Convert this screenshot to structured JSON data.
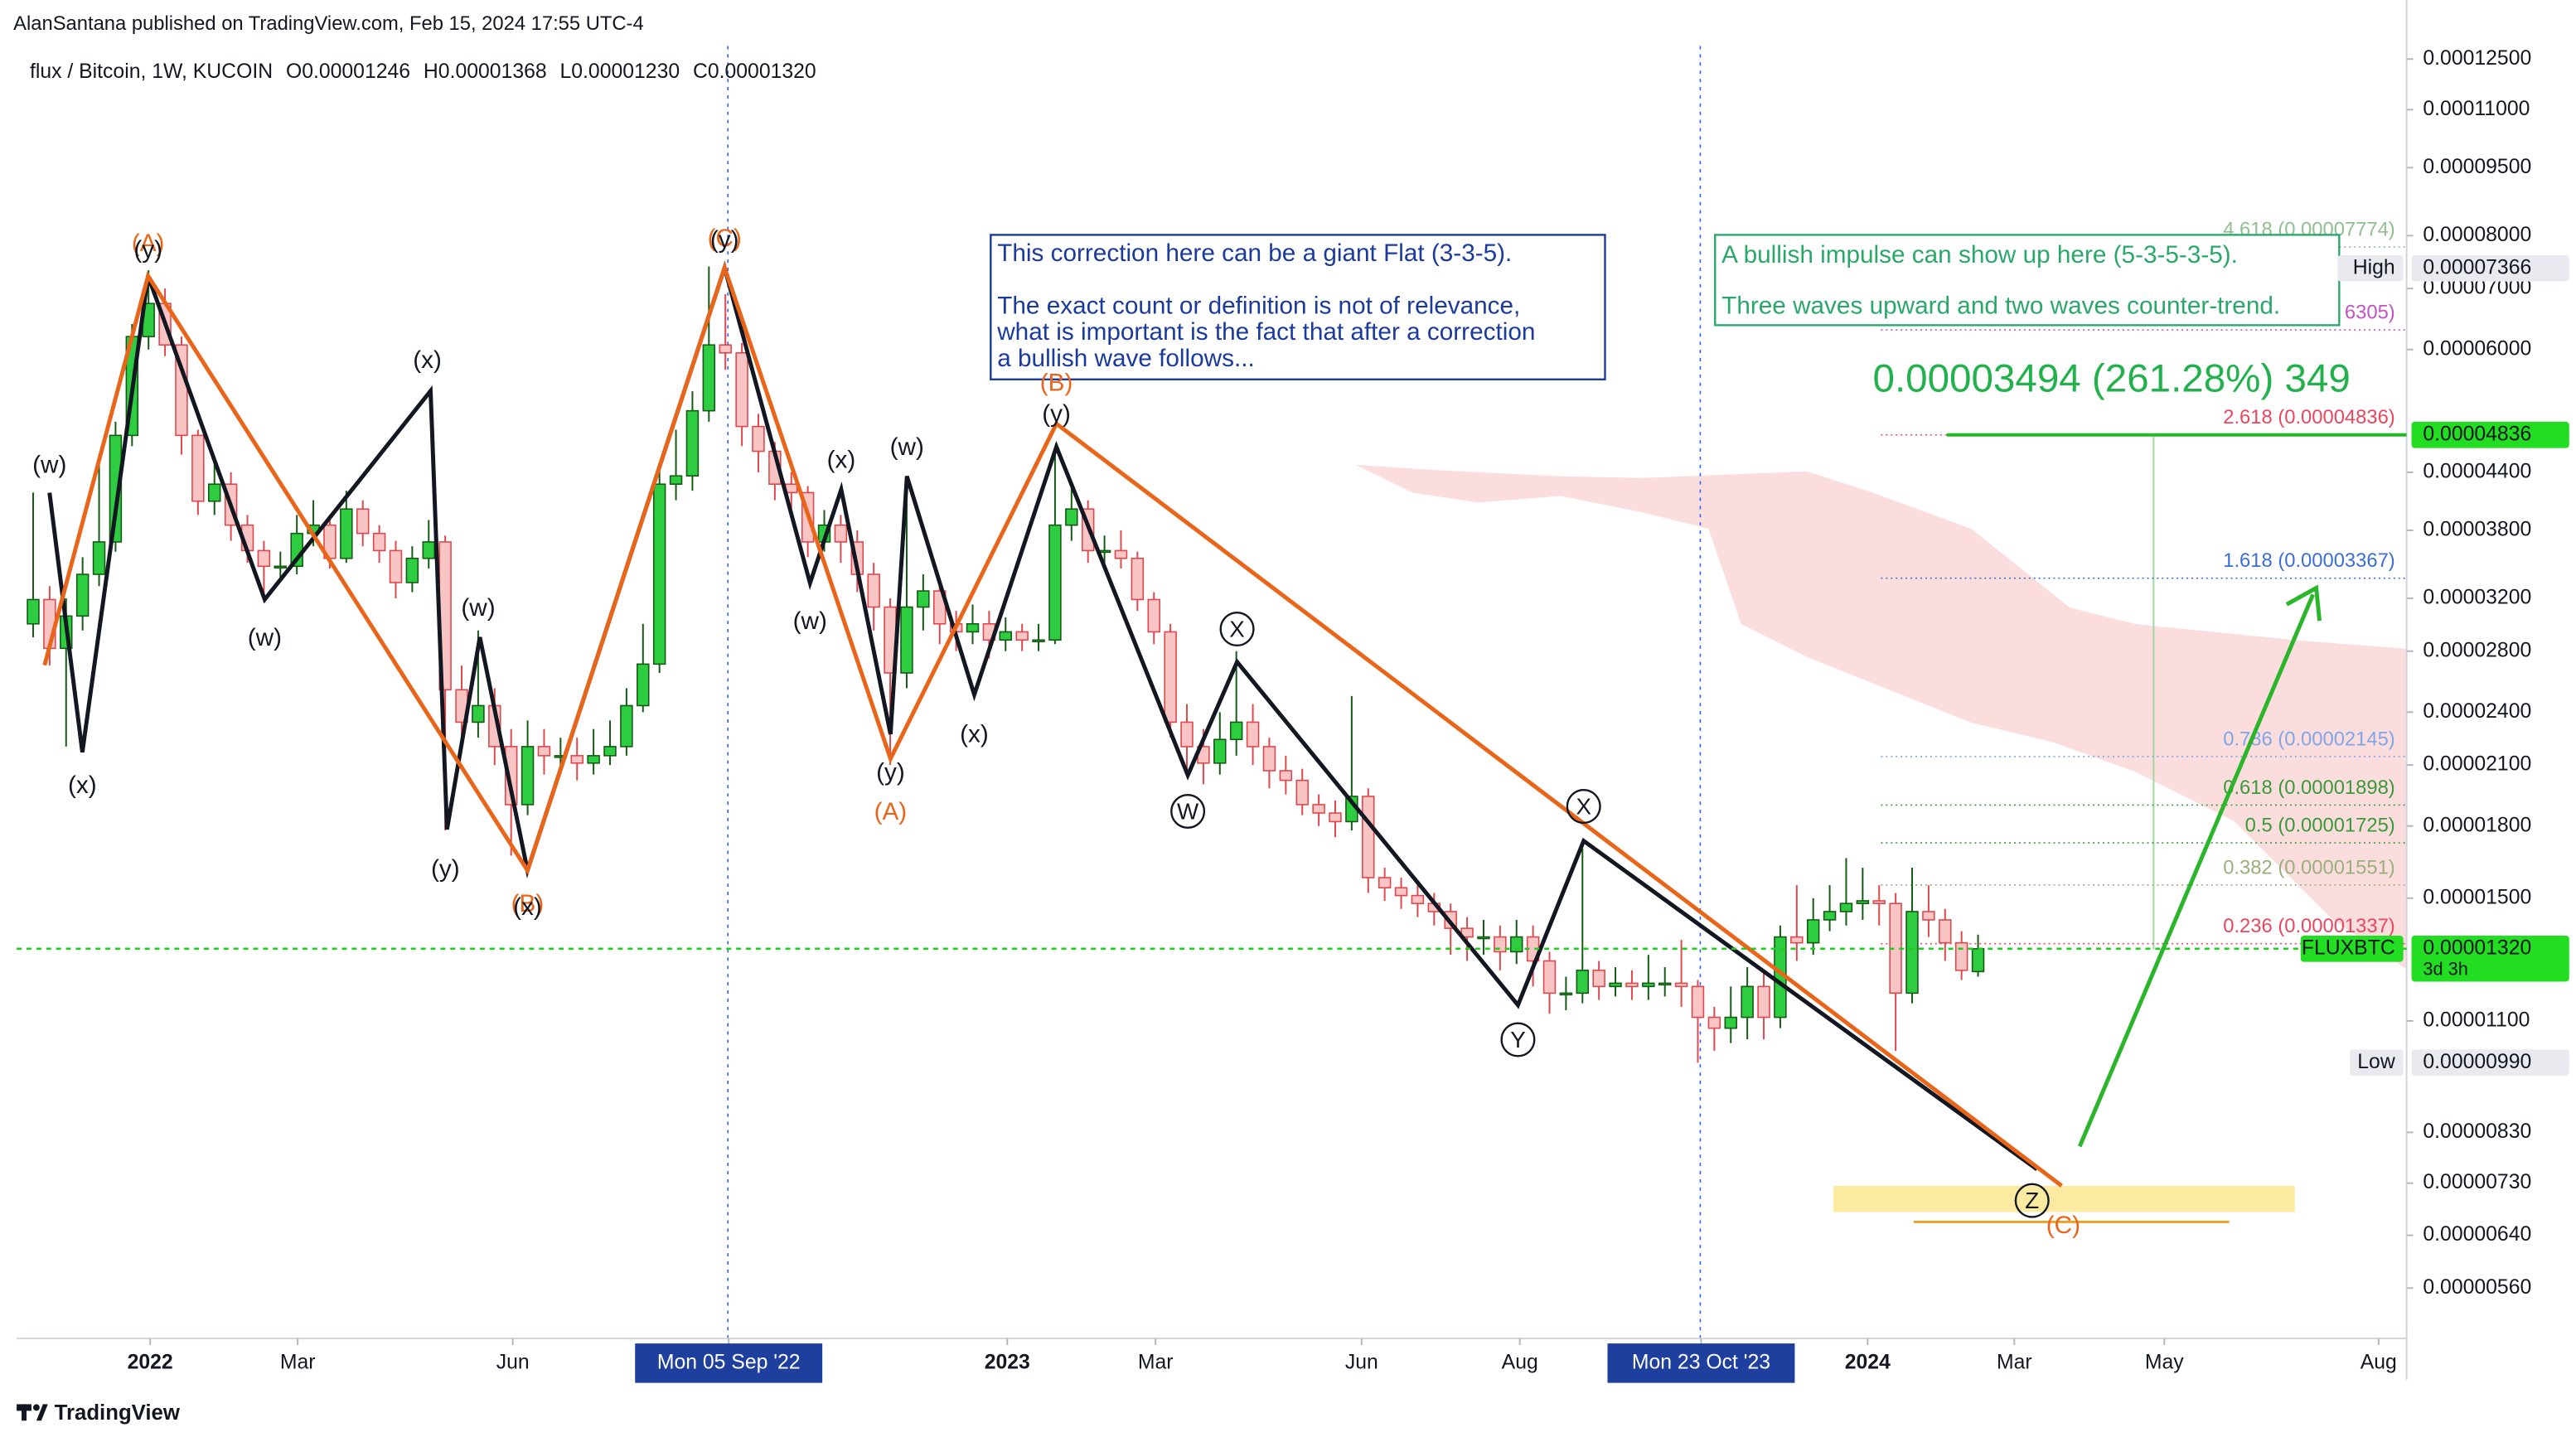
{
  "header": {
    "publisher": "AlanSantana published on TradingView.com, Feb 15, 2024 17:55 UTC-4"
  },
  "legend": {
    "symbol": "flux / Bitcoin, 1W, KUCOIN",
    "open": "O0.00001246",
    "high": "H0.00001368",
    "low": "L0.00001230",
    "close": "C0.00001320"
  },
  "chart_data": {
    "type": "candlestick",
    "log_scale": true,
    "grid": false,
    "up_color": "#2ecc40",
    "down_color": "#f9c4c4",
    "up_border": "#145a14",
    "down_border": "#e0474c",
    "open": [
      3e-05,
      3.19e-05,
      2.82e-05,
      3.06e-05,
      3.4e-05,
      3.69e-05,
      4.83e-05,
      6.2e-05,
      6.74e-05,
      6.07e-05,
      4.83e-05,
      4.09e-05,
      4.27e-05,
      3.85e-05,
      3.61e-05,
      3.47e-05,
      3.47e-05,
      3.77e-05,
      3.85e-05,
      3.54e-05,
      4.01e-05,
      3.77e-05,
      3.61e-05,
      3.33e-05,
      3.54e-05,
      3.69e-05,
      2.54e-05,
      2.34e-05,
      2.44e-05,
      2.2e-05,
      1.9e-05,
      2.2e-05,
      2.15e-05,
      2.15e-05,
      2.11e-05,
      2.15e-05,
      2.2e-05,
      2.44e-05,
      2.71e-05,
      4.27e-05,
      4.36e-05,
      5.14e-05,
      6.07e-05,
      5.95e-05,
      4.94e-05,
      4.64e-05,
      4.27e-05,
      4.18e-05,
      3.69e-05,
      3.85e-05,
      3.69e-05,
      3.4e-05,
      3.13e-05,
      2.65e-05,
      3.13e-05,
      3.26e-05,
      3e-05,
      2.94e-05,
      3e-05,
      2.88e-05,
      2.94e-05,
      2.88e-05,
      2.88e-05,
      3.85e-05,
      4.01e-05,
      3.61e-05,
      3.61e-05,
      3.54e-05,
      3.19e-05,
      2.94e-05,
      2.34e-05,
      2.2e-05,
      2.11e-05,
      2.24e-05,
      2.34e-05,
      2.2e-05,
      2.07e-05,
      2.02e-05,
      1.9e-05,
      1.86e-05,
      1.82e-05,
      1.94e-05,
      1.58e-05,
      1.54e-05,
      1.51e-05,
      1.48e-05,
      1.45e-05,
      1.39e-05,
      1.36e-05,
      1.36e-05,
      1.31e-05,
      1.36e-05,
      1.28e-05,
      1.18e-05,
      1.18e-05,
      1.25e-05,
      1.2e-05,
      1.21e-05,
      1.2e-05,
      1.21e-05,
      1.21e-05,
      1.2e-05,
      1.11e-05,
      1.08e-05,
      1.11e-05,
      1.2e-05,
      1.11e-05,
      1.36e-05,
      1.34e-05,
      1.42e-05,
      1.45e-05,
      1.48e-05,
      1.49e-05,
      1.48e-05,
      1.18e-05,
      1.45e-05,
      1.42e-05,
      1.34e-05,
      1.246e-05
    ],
    "high": [
      4.18e-05,
      3.3e-05,
      3.2e-05,
      3.55e-05,
      4.6e-05,
      5e-05,
      6.4e-05,
      7.33e-05,
      7e-05,
      6.2e-05,
      4.9e-05,
      4.5e-05,
      4.4e-05,
      3.95e-05,
      3.7e-05,
      3.6e-05,
      3.95e-05,
      4.1e-05,
      3.95e-05,
      4.2e-05,
      4.1e-05,
      3.85e-05,
      3.7e-05,
      3.65e-05,
      3.9e-05,
      3.75e-05,
      2.7e-05,
      2.95e-05,
      2.55e-05,
      2.3e-05,
      2.35e-05,
      2.3e-05,
      2.25e-05,
      2.25e-05,
      2.3e-05,
      2.35e-05,
      2.55e-05,
      3e-05,
      4.5e-05,
      4.9e-05,
      5.4e-05,
      7.4e-05,
      6.9e-05,
      6.1e-05,
      5.1e-05,
      4.75e-05,
      4.4e-05,
      4.25e-05,
      4e-05,
      3.95e-05,
      3.8e-05,
      3.5e-05,
      3.2e-05,
      4.36e-05,
      3.4e-05,
      3.3e-05,
      3.1e-05,
      3.15e-05,
      3.1e-05,
      3.05e-05,
      3e-05,
      3e-05,
      4.6e-05,
      4.3e-05,
      4.1e-05,
      3.75e-05,
      3.8e-05,
      3.6e-05,
      3.25e-05,
      3e-05,
      2.45e-05,
      2.3e-05,
      2.4e-05,
      2.8e-05,
      2.45e-05,
      2.25e-05,
      2.15e-05,
      2.08e-05,
      1.95e-05,
      1.92e-05,
      2.5e-05,
      1.98e-05,
      1.62e-05,
      1.58e-05,
      1.55e-05,
      1.52e-05,
      1.48e-05,
      1.43e-05,
      1.42e-05,
      1.4e-05,
      1.42e-05,
      1.4e-05,
      1.31e-05,
      1.23e-05,
      1.7e-05,
      1.28e-05,
      1.26e-05,
      1.25e-05,
      1.3e-05,
      1.26e-05,
      1.35e-05,
      1.22e-05,
      1.14e-05,
      1.2e-05,
      1.26e-05,
      1.24e-05,
      1.4e-05,
      1.55e-05,
      1.5e-05,
      1.55e-05,
      1.66e-05,
      1.62e-05,
      1.55e-05,
      1.52e-05,
      1.62e-05,
      1.55e-05,
      1.46e-05,
      1.38e-05,
      1.368e-05
    ],
    "low": [
      2.9e-05,
      2.7e-05,
      2.2e-05,
      2.95e-05,
      3.3e-05,
      3.6e-05,
      4.7e-05,
      6e-05,
      5.9e-05,
      4.6e-05,
      3.95e-05,
      3.95e-05,
      3.7e-05,
      3.5e-05,
      3.2e-05,
      3.35e-05,
      3.4e-05,
      3.65e-05,
      3.45e-05,
      3.5e-05,
      3.65e-05,
      3.5e-05,
      3.2e-05,
      3.25e-05,
      3.45e-05,
      1.78e-05,
      2.2e-05,
      2.25e-05,
      2.1e-05,
      1.67e-05,
      1.85e-05,
      2.05e-05,
      2.05e-05,
      2.02e-05,
      2.05e-05,
      2.1e-05,
      2.15e-05,
      2.4e-05,
      2.65e-05,
      4.1e-05,
      4.2e-05,
      5e-05,
      5.7e-05,
      4.7e-05,
      4.4e-05,
      4.1e-05,
      4e-05,
      3.55e-05,
      3.6e-05,
      3.5e-05,
      3.25e-05,
      2.95e-05,
      2.1e-05,
      2.55e-05,
      2.95e-05,
      2.85e-05,
      2.8e-05,
      2.85e-05,
      2.75e-05,
      2.8e-05,
      2.8e-05,
      2.8e-05,
      2.85e-05,
      3.7e-05,
      3.5e-05,
      3.45e-05,
      3.45e-05,
      3.1e-05,
      2.85e-05,
      2.25e-05,
      2.05e-05,
      2e-05,
      2.05e-05,
      2.15e-05,
      2.1e-05,
      1.98e-05,
      1.95e-05,
      1.85e-05,
      1.8e-05,
      1.75e-05,
      1.78e-05,
      1.52e-05,
      1.49e-05,
      1.46e-05,
      1.43e-05,
      1.4e-05,
      1.3e-05,
      1.28e-05,
      1.3e-05,
      1.25e-05,
      1.27e-05,
      1.2e-05,
      1.12e-05,
      1.13e-05,
      1.15e-05,
      1.16e-05,
      1.17e-05,
      1.16e-05,
      1.16e-05,
      1.17e-05,
      1.14e-05,
      9.9e-06,
      1.02e-05,
      1.04e-05,
      1.05e-05,
      1.05e-05,
      1.08e-05,
      1.28e-05,
      1.3e-05,
      1.38e-05,
      1.4e-05,
      1.42e-05,
      1.4e-05,
      1.02e-05,
      1.15e-05,
      1.36e-05,
      1.28e-05,
      1.22e-05,
      1.23e-05
    ],
    "close": [
      3.19e-05,
      2.82e-05,
      3.06e-05,
      3.4e-05,
      3.69e-05,
      4.83e-05,
      6.2e-05,
      6.74e-05,
      6.07e-05,
      4.83e-05,
      4.09e-05,
      4.27e-05,
      3.85e-05,
      3.61e-05,
      3.47e-05,
      3.47e-05,
      3.77e-05,
      3.85e-05,
      3.54e-05,
      4.01e-05,
      3.77e-05,
      3.61e-05,
      3.33e-05,
      3.54e-05,
      3.69e-05,
      2.54e-05,
      2.34e-05,
      2.44e-05,
      2.2e-05,
      1.9e-05,
      2.2e-05,
      2.15e-05,
      2.15e-05,
      2.11e-05,
      2.15e-05,
      2.2e-05,
      2.44e-05,
      2.71e-05,
      4.27e-05,
      4.36e-05,
      5.14e-05,
      6.07e-05,
      5.95e-05,
      4.94e-05,
      4.64e-05,
      4.27e-05,
      4.18e-05,
      3.69e-05,
      3.85e-05,
      3.69e-05,
      3.4e-05,
      3.13e-05,
      2.65e-05,
      3.13e-05,
      3.26e-05,
      3e-05,
      2.94e-05,
      3e-05,
      2.88e-05,
      2.94e-05,
      2.88e-05,
      2.88e-05,
      3.85e-05,
      4.01e-05,
      3.61e-05,
      3.61e-05,
      3.54e-05,
      3.19e-05,
      2.94e-05,
      2.34e-05,
      2.2e-05,
      2.11e-05,
      2.24e-05,
      2.34e-05,
      2.2e-05,
      2.07e-05,
      2.02e-05,
      1.9e-05,
      1.86e-05,
      1.82e-05,
      1.94e-05,
      1.58e-05,
      1.54e-05,
      1.51e-05,
      1.48e-05,
      1.45e-05,
      1.39e-05,
      1.36e-05,
      1.36e-05,
      1.31e-05,
      1.36e-05,
      1.28e-05,
      1.18e-05,
      1.18e-05,
      1.25e-05,
      1.2e-05,
      1.21e-05,
      1.2e-05,
      1.21e-05,
      1.21e-05,
      1.2e-05,
      1.11e-05,
      1.08e-05,
      1.11e-05,
      1.2e-05,
      1.11e-05,
      1.36e-05,
      1.34e-05,
      1.42e-05,
      1.45e-05,
      1.48e-05,
      1.49e-05,
      1.48e-05,
      1.18e-05,
      1.45e-05,
      1.42e-05,
      1.34e-05,
      1.25e-05,
      1.32e-05
    ],
    "xlim": [
      -1,
      144
    ],
    "ylim": [
      4.93e-06,
      0.0001292
    ],
    "xticks": [
      {
        "value": 7.1,
        "label": "2022"
      },
      {
        "value": 16.05,
        "label": "Mar"
      },
      {
        "value": 29.1,
        "label": "Jun"
      },
      {
        "value": 42.2,
        "label": "Mon 05 Sep '22"
      },
      {
        "value": 59.1,
        "label": "2023"
      },
      {
        "value": 68.1,
        "label": "Mar"
      },
      {
        "value": 80.6,
        "label": "Jun"
      },
      {
        "value": 90.2,
        "label": "Aug"
      },
      {
        "value": 101.2,
        "label": "Mon 23 Oct '23"
      },
      {
        "value": 111.3,
        "label": "2024"
      },
      {
        "value": 120.2,
        "label": "Mar"
      },
      {
        "value": 129.3,
        "label": "May"
      },
      {
        "value": 142.3,
        "label": "Aug"
      }
    ],
    "highlighted_xticks": [
      3,
      8
    ],
    "yticks": [
      {
        "value": 0.000125,
        "label": "0.00012500"
      },
      {
        "value": 0.00011,
        "label": "0.00011000"
      },
      {
        "value": 9.5e-05,
        "label": "0.00009500"
      },
      {
        "value": 8e-05,
        "label": "0.00008000"
      },
      {
        "value": 7e-05,
        "label": "0.00007000"
      },
      {
        "value": 6e-05,
        "label": "0.00006000"
      },
      {
        "value": 4.4e-05,
        "label": "0.00004400"
      },
      {
        "value": 3.8e-05,
        "label": "0.00003800"
      },
      {
        "value": 3.2e-05,
        "label": "0.00003200"
      },
      {
        "value": 2.8e-05,
        "label": "0.00002800"
      },
      {
        "value": 2.4e-05,
        "label": "0.00002400"
      },
      {
        "value": 2.1e-05,
        "label": "0.00002100"
      },
      {
        "value": 1.8e-05,
        "label": "0.00001800"
      },
      {
        "value": 1.5e-05,
        "label": "0.00001500"
      },
      {
        "value": 1.1e-05,
        "label": "0.00001100"
      },
      {
        "value": 8.3e-06,
        "label": "0.00000830"
      },
      {
        "value": 7.3e-06,
        "label": "0.00000730"
      },
      {
        "value": 6.4e-06,
        "label": "0.00000640"
      },
      {
        "value": 5.6e-06,
        "label": "0.00000560"
      }
    ],
    "price_badges": [
      {
        "name": "High",
        "value": 7.366e-05,
        "label": "0.00007366",
        "color": "#e8eaef"
      },
      {
        "name": "Low",
        "value": 9.9e-06,
        "label": "0.00000990",
        "color": "#e8eaef"
      },
      {
        "name": "FLUXBTC",
        "value": 1.32e-05,
        "label": "0.00001320",
        "countdown": "3d 3h",
        "color": "#22dd22"
      },
      {
        "value": 4.836e-05,
        "label": "0.00004836",
        "color": "#22dd22"
      }
    ],
    "last_price": 1.32e-05,
    "fib_levels": [
      {
        "value": 7.774e-05,
        "label": "4.618 (0.00007774)",
        "color": "#8fbf8f"
      },
      {
        "value": 6.305e-05,
        "label": "6305)",
        "color": "#c254c2"
      },
      {
        "value": 4.836e-05,
        "label": "2.618 (0.00004836)",
        "color": "#e8475f"
      },
      {
        "value": 3.367e-05,
        "label": "1.618 (0.00003367)",
        "color": "#3b6fd6"
      },
      {
        "value": 2.145e-05,
        "label": "0.786 (0.00002145)",
        "color": "#7fa6e6"
      },
      {
        "value": 1.898e-05,
        "label": "0.618 (0.00001898)",
        "color": "#3a9a3a"
      },
      {
        "value": 1.725e-05,
        "label": "0.5 (0.00001725)",
        "color": "#3a9a3a"
      },
      {
        "value": 1.551e-05,
        "label": "0.382 (0.00001551)",
        "color": "#99b07a"
      },
      {
        "value": 1.337e-05,
        "label": "0.236 (0.00001337)",
        "color": "#e8475f"
      }
    ],
    "measurement": "0.00003494 (261.28%) 349"
  },
  "annotations": {
    "note_flat": [
      "This correction here can be a giant Flat (3-3-5).",
      "The exact count or definition is not of relevance,",
      "what is important is the fact that after a correction",
      "a bullish wave follows..."
    ],
    "note_impulse": [
      "A bullish impulse can show up here (5-3-5-3-5).",
      "Three waves upward and two waves counter-trend."
    ],
    "wave_labels": [
      {
        "text": "(w)",
        "color": "#131722"
      },
      {
        "text": "(x)",
        "color": "#131722"
      },
      {
        "text": "(A)",
        "color": "#e8651a"
      },
      {
        "text": "(y)",
        "color": "#131722"
      },
      {
        "text": "(x)",
        "color": "#131722"
      },
      {
        "text": "(w)",
        "color": "#131722"
      },
      {
        "text": "(w)",
        "color": "#131722"
      },
      {
        "text": "(y)",
        "color": "#131722"
      },
      {
        "text": "(B)",
        "color": "#e8651a"
      },
      {
        "text": "(x)",
        "color": "#131722"
      },
      {
        "text": "(C)",
        "color": "#e8651a"
      },
      {
        "text": "(y)",
        "color": "#131722"
      },
      {
        "text": "(x)",
        "color": "#131722"
      },
      {
        "text": "(w)",
        "color": "#131722"
      },
      {
        "text": "(w)",
        "color": "#131722"
      },
      {
        "text": "(x)",
        "color": "#131722"
      },
      {
        "text": "(y)",
        "color": "#131722"
      },
      {
        "text": "(A)",
        "color": "#e8651a"
      },
      {
        "text": "(B)",
        "color": "#e8651a"
      },
      {
        "text": "(y)",
        "color": "#131722"
      },
      {
        "text": "W",
        "color": "#131722",
        "circled": true
      },
      {
        "text": "X",
        "color": "#131722",
        "circled": true
      },
      {
        "text": "Y",
        "color": "#131722",
        "circled": true
      },
      {
        "text": "X",
        "color": "#131722",
        "circled": true
      },
      {
        "text": "Z",
        "color": "#131722",
        "circled": true
      },
      {
        "text": "(C)",
        "color": "#e8651a"
      }
    ]
  },
  "footer": {
    "brand": "TradingView"
  }
}
